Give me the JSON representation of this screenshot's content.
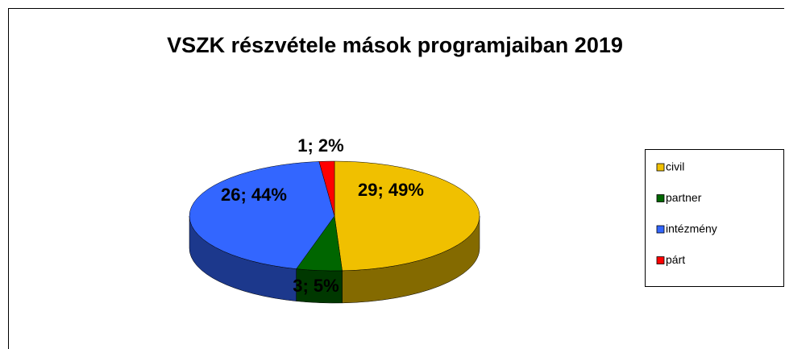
{
  "chart_data": {
    "type": "pie3d",
    "title": "VSZK részvétele mások programjaiban 2019",
    "categories": [
      "civil",
      "partner",
      "intézmény",
      "párt"
    ],
    "series": [
      {
        "values": [
          29,
          3,
          26,
          1
        ],
        "value_labels": [
          "29; 49%",
          "3; 5%",
          "26; 44%",
          "1; 2%"
        ],
        "colors": [
          "#f0c000",
          "#006600",
          "#3366ff",
          "#ff0000"
        ]
      }
    ],
    "legend": "right"
  }
}
